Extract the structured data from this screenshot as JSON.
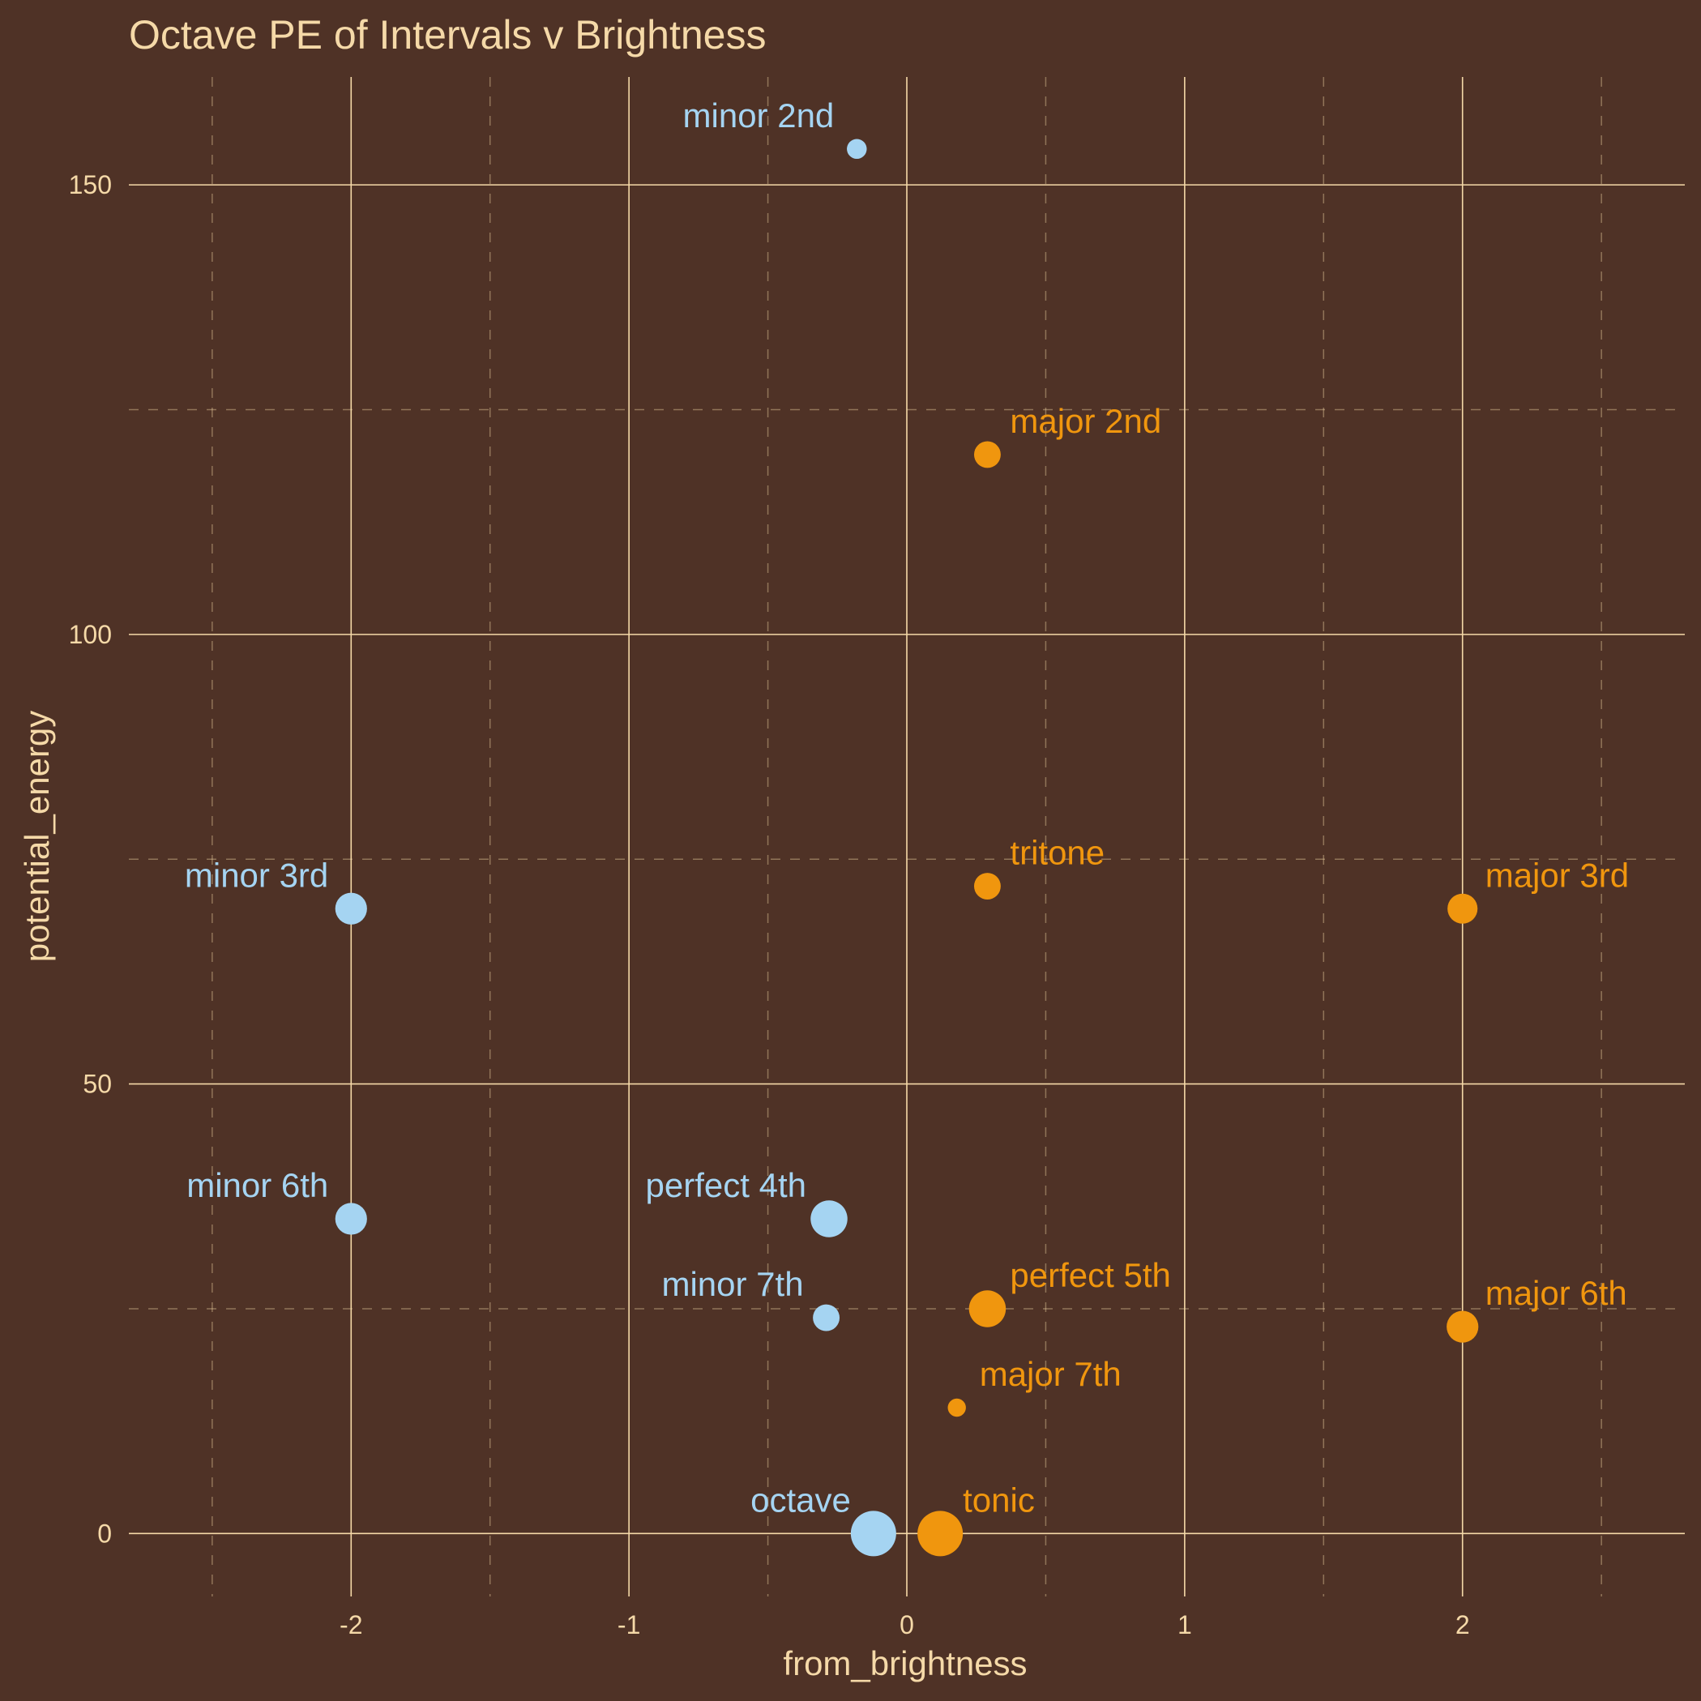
{
  "chart_data": {
    "type": "scatter",
    "title": "Octave PE of Intervals v Brightness",
    "xlabel": "from_brightness",
    "ylabel": "potential_energy",
    "xlim": [
      -2.8,
      2.8
    ],
    "ylim": [
      -7,
      162
    ],
    "x_ticks": [
      -2,
      -1,
      0,
      1,
      2
    ],
    "x_tick_labels": [
      "-2",
      "-1",
      "0",
      "1",
      "2"
    ],
    "x_minor_ticks": [
      -2.5,
      -1.5,
      -0.5,
      0.5,
      1.5,
      2.5
    ],
    "y_ticks": [
      0,
      50,
      100,
      150
    ],
    "y_tick_labels": [
      "0",
      "50",
      "100",
      "150"
    ],
    "y_minor_ticks": [
      25,
      75,
      125
    ],
    "grid": true,
    "legend": "none",
    "colors": {
      "background": "#4f3226",
      "grid": "#f5d9a8",
      "text": "#f5d9a8",
      "series_a": "#a5d4f2",
      "series_b": "#f0960e"
    },
    "points": [
      {
        "label": "minor 2nd",
        "x": -0.18,
        "y": 154,
        "size": 0.25,
        "color": "#a5d4f2",
        "label_side": "left"
      },
      {
        "label": "major 2nd",
        "x": 0.29,
        "y": 120,
        "size": 0.45,
        "color": "#f0960e",
        "label_side": "right"
      },
      {
        "label": "minor 3rd",
        "x": -2.0,
        "y": 69.5,
        "size": 0.6,
        "color": "#a5d4f2",
        "label_side": "left"
      },
      {
        "label": "tritone",
        "x": 0.29,
        "y": 72,
        "size": 0.45,
        "color": "#f0960e",
        "label_side": "right"
      },
      {
        "label": "major 3rd",
        "x": 2.0,
        "y": 69.5,
        "size": 0.55,
        "color": "#f0960e",
        "label_side": "right"
      },
      {
        "label": "minor 6th",
        "x": -2.0,
        "y": 35,
        "size": 0.6,
        "color": "#a5d4f2",
        "label_side": "left"
      },
      {
        "label": "perfect 4th",
        "x": -0.28,
        "y": 35,
        "size": 0.75,
        "color": "#a5d4f2",
        "label_side": "left"
      },
      {
        "label": "minor 7th",
        "x": -0.29,
        "y": 24,
        "size": 0.45,
        "color": "#a5d4f2",
        "label_side": "left"
      },
      {
        "label": "perfect 5th",
        "x": 0.29,
        "y": 25,
        "size": 0.75,
        "color": "#f0960e",
        "label_side": "right"
      },
      {
        "label": "major 6th",
        "x": 2.0,
        "y": 23,
        "size": 0.6,
        "color": "#f0960e",
        "label_side": "right"
      },
      {
        "label": "major 7th",
        "x": 0.18,
        "y": 14,
        "size": 0.2,
        "color": "#f0960e",
        "label_side": "right"
      },
      {
        "label": "octave",
        "x": -0.12,
        "y": 0,
        "size": 1.0,
        "color": "#a5d4f2",
        "label_side": "left"
      },
      {
        "label": "tonic",
        "x": 0.12,
        "y": 0,
        "size": 1.0,
        "color": "#f0960e",
        "label_side": "right"
      }
    ]
  }
}
